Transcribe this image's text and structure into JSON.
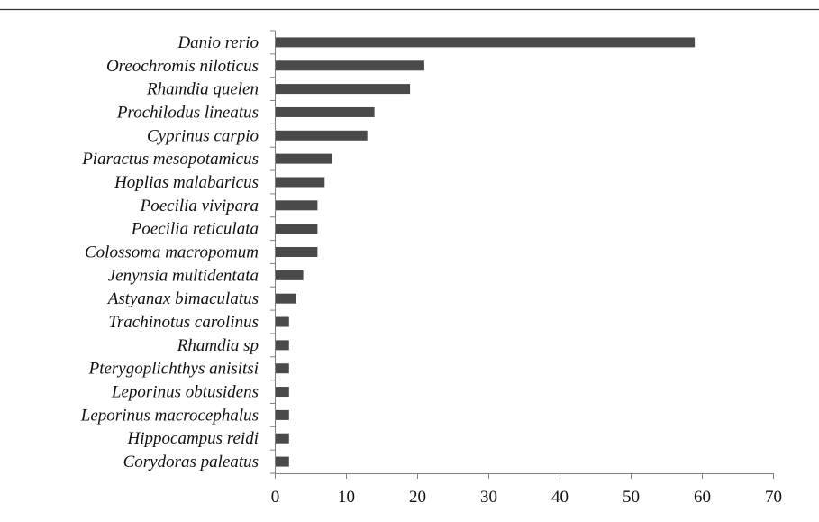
{
  "colors": {
    "bar": "#4a4a4a",
    "axis": "#7f7f7f",
    "top_rule": "#333333",
    "text": "#111111"
  },
  "chart_data": {
    "type": "bar",
    "orientation": "horizontal",
    "categories": [
      "Danio rerio",
      "Oreochromis niloticus",
      "Rhamdia quelen",
      "Prochilodus lineatus",
      "Cyprinus carpio",
      "Piaractus mesopotamicus",
      "Hoplias malabaricus",
      "Poecilia vivipara",
      "Poecilia reticulata",
      "Colossoma macropomum",
      "Jenynsia multidentata",
      "Astyanax bimaculatus",
      "Trachinotus carolinus",
      "Rhamdia sp",
      "Pterygoplichthys anisitsi",
      "Leporinus obtusidens",
      "Leporinus macrocephalus",
      "Hippocampus reidi",
      "Corydoras paleatus"
    ],
    "values": [
      59,
      21,
      19,
      14,
      13,
      8,
      7,
      6,
      6,
      6,
      4,
      3,
      2,
      2,
      2,
      2,
      2,
      2,
      2
    ],
    "xlim": [
      0,
      70
    ],
    "xticks": [
      0,
      10,
      20,
      30,
      40,
      50,
      60,
      70
    ],
    "title": "",
    "xlabel": "",
    "ylabel": "",
    "grid": false,
    "legend": "none"
  }
}
